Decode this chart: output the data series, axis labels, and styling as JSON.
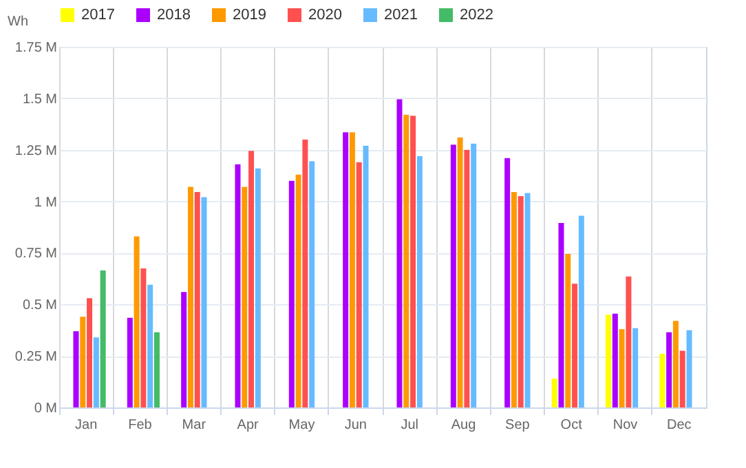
{
  "chart_data": {
    "type": "bar",
    "ylabel": "Wh",
    "categories": [
      "Jan",
      "Feb",
      "Mar",
      "Apr",
      "May",
      "Jun",
      "Jul",
      "Aug",
      "Sep",
      "Oct",
      "Nov",
      "Dec"
    ],
    "series": [
      {
        "name": "2017",
        "color": "#ffff00",
        "values": [
          null,
          null,
          null,
          null,
          null,
          null,
          null,
          null,
          null,
          0.14,
          0.45,
          0.26
        ]
      },
      {
        "name": "2018",
        "color": "#aa00ff",
        "values": [
          0.37,
          0.435,
          0.56,
          1.18,
          1.1,
          1.335,
          1.495,
          1.275,
          1.21,
          0.895,
          0.455,
          0.365
        ]
      },
      {
        "name": "2019",
        "color": "#ff9900",
        "values": [
          0.44,
          0.83,
          1.07,
          1.07,
          1.13,
          1.335,
          1.42,
          1.31,
          1.045,
          0.745,
          0.38,
          0.42
        ]
      },
      {
        "name": "2020",
        "color": "#ff5050",
        "values": [
          0.53,
          0.675,
          1.045,
          1.245,
          1.3,
          1.19,
          1.415,
          1.25,
          1.025,
          0.6,
          0.635,
          0.275
        ]
      },
      {
        "name": "2021",
        "color": "#66bbff",
        "values": [
          0.34,
          0.595,
          1.02,
          1.16,
          1.195,
          1.27,
          1.22,
          1.28,
          1.04,
          0.93,
          0.385,
          0.375
        ]
      },
      {
        "name": "2022",
        "color": "#44bb66",
        "values": [
          0.665,
          0.365,
          null,
          null,
          null,
          null,
          null,
          null,
          null,
          null,
          null,
          null
        ]
      }
    ],
    "ylim": [
      0,
      1.75
    ],
    "yticks": [
      {
        "value": 0,
        "label": "0 M"
      },
      {
        "value": 0.25,
        "label": "0.25 M"
      },
      {
        "value": 0.5,
        "label": "0.5 M"
      },
      {
        "value": 0.75,
        "label": "0.75 M"
      },
      {
        "value": 1,
        "label": "1 M"
      },
      {
        "value": 1.25,
        "label": "1.25 M"
      },
      {
        "value": 1.5,
        "label": "1.5 M"
      },
      {
        "value": 1.75,
        "label": "1.75 M"
      }
    ],
    "grid": true,
    "legend": "top"
  }
}
